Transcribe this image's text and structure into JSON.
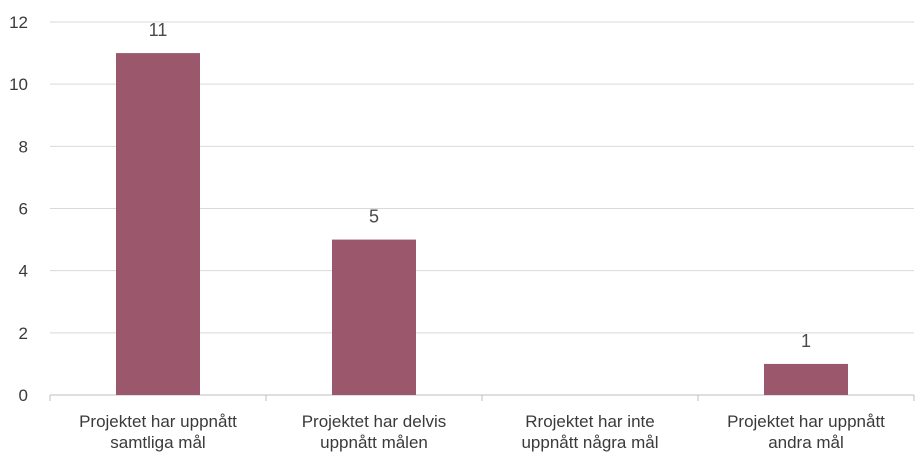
{
  "chart_data": {
    "type": "bar",
    "categories": [
      [
        "Projektet har uppnått",
        "samtliga mål"
      ],
      [
        "Projektet har delvis",
        "uppnått målen"
      ],
      [
        "Rrojektet har inte",
        "uppnått några mål"
      ],
      [
        "Projektet har uppnått",
        "andra mål"
      ]
    ],
    "values": [
      11,
      5,
      0,
      1
    ],
    "data_labels": [
      "11",
      "5",
      "",
      "1"
    ],
    "ylim": [
      0,
      12
    ],
    "yticks": [
      0,
      2,
      4,
      6,
      8,
      10,
      12
    ],
    "grid": true,
    "legend": "none",
    "colors": {
      "bar": "#9b586d"
    }
  }
}
